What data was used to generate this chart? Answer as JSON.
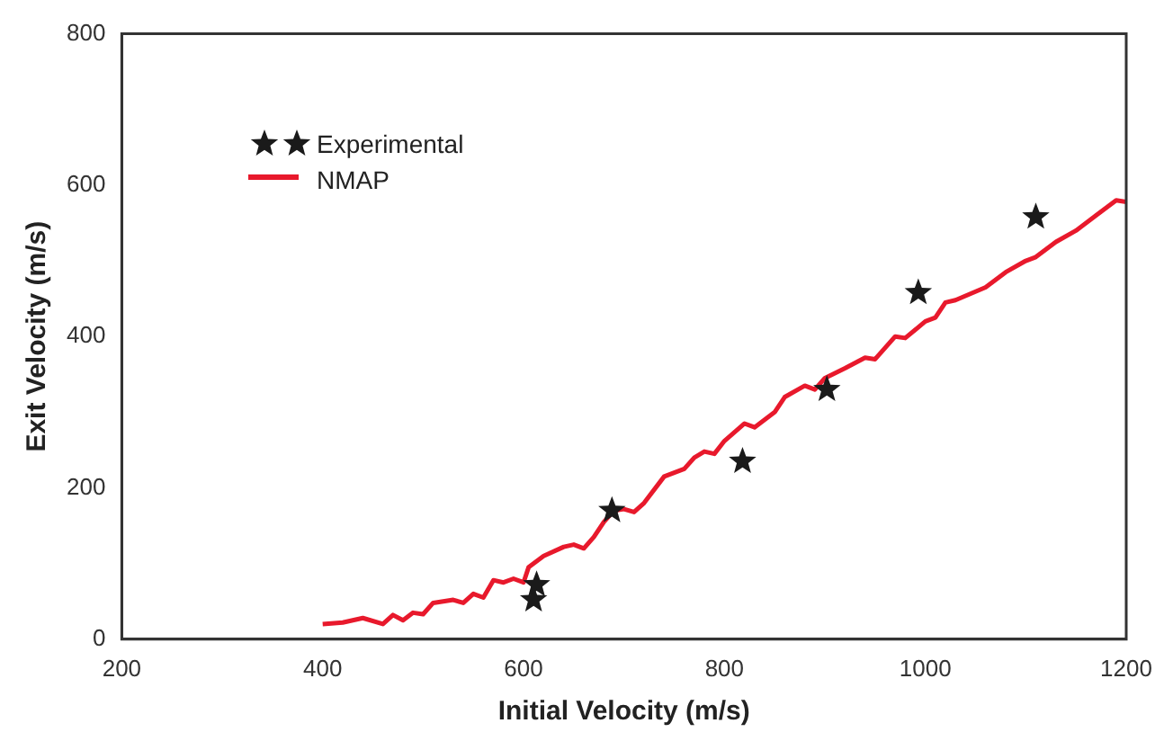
{
  "chart_data": {
    "type": "line",
    "xlabel": "Initial Velocity (m/s)",
    "ylabel": "Exit Velocity (m/s)",
    "xlim": [
      200,
      1200
    ],
    "ylim": [
      0,
      800
    ],
    "xticks": [
      200,
      400,
      600,
      800,
      {
        "value": 1000,
        "label": "1000"
      },
      {
        "value": 1200,
        "label": "1200"
      }
    ],
    "yticks": [
      0,
      200,
      400,
      600,
      800
    ],
    "grid": false,
    "legend": "top left",
    "series": [
      {
        "name": "Experimental",
        "type": "scatter",
        "marker": "star",
        "color": "#1a1a1a",
        "x": [
          610,
          613,
          688,
          818,
          902,
          993,
          1110
        ],
        "values": [
          52,
          72,
          170,
          235,
          330,
          458,
          558
        ]
      },
      {
        "name": "NMAP",
        "marker": "none",
        "line_style": "solid",
        "color": "#e8192c",
        "x": [
          400,
          420,
          440,
          460,
          470,
          480,
          490,
          500,
          510,
          530,
          540,
          550,
          560,
          570,
          580,
          590,
          600,
          605,
          620,
          640,
          650,
          660,
          670,
          680,
          690,
          700,
          710,
          720,
          740,
          760,
          770,
          780,
          790,
          800,
          820,
          830,
          850,
          860,
          880,
          890,
          900,
          920,
          940,
          950,
          970,
          980,
          1000,
          1010,
          1020,
          1030,
          1060,
          1080,
          1100,
          1110,
          1130,
          1150,
          1170,
          1190,
          1200
        ],
        "values": [
          20,
          22,
          28,
          20,
          32,
          25,
          35,
          33,
          48,
          52,
          48,
          60,
          55,
          78,
          75,
          80,
          75,
          95,
          110,
          122,
          125,
          120,
          135,
          155,
          170,
          172,
          168,
          180,
          215,
          225,
          240,
          248,
          245,
          262,
          285,
          280,
          300,
          320,
          335,
          330,
          345,
          358,
          372,
          370,
          400,
          398,
          420,
          425,
          445,
          448,
          465,
          485,
          500,
          505,
          525,
          540,
          560,
          580,
          578
        ]
      }
    ]
  }
}
